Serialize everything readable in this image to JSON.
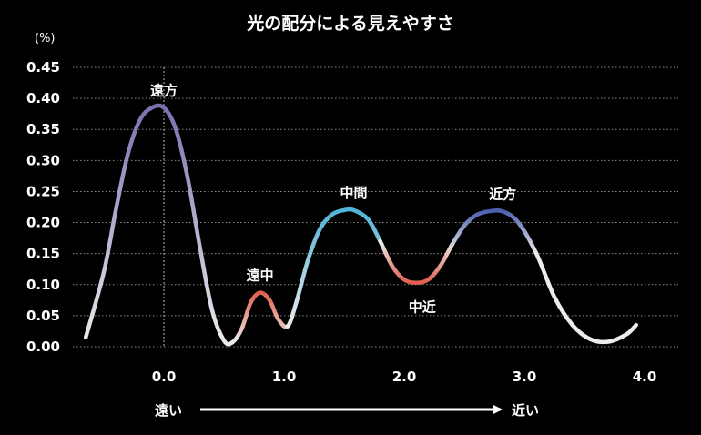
{
  "chart_data": {
    "type": "line",
    "title": "光の配分による見えやすさ",
    "ylabel": "(%)",
    "xlabel": "",
    "ylim": [
      0,
      0.45
    ],
    "xlim": [
      -0.65,
      4.0
    ],
    "grid": true,
    "y_ticks": [
      "0.00",
      "0.05",
      "0.10",
      "0.15",
      "0.20",
      "0.25",
      "0.30",
      "0.35",
      "0.40",
      "0.45"
    ],
    "y_tick_values": [
      0,
      0.05,
      0.1,
      0.15,
      0.2,
      0.25,
      0.3,
      0.35,
      0.4,
      0.45
    ],
    "x_ticks": [
      "0.0",
      "1.0",
      "2.0",
      "3.0",
      "4.0"
    ],
    "x_tick_values": [
      0,
      1,
      2,
      3,
      4
    ],
    "series": [
      {
        "x": [
          -0.65,
          -0.5,
          -0.4,
          -0.3,
          -0.2,
          -0.1,
          0.0,
          0.1,
          0.2,
          0.3,
          0.4,
          0.5,
          0.57,
          0.65,
          0.72,
          0.8,
          0.88,
          0.95,
          1.03,
          1.1,
          1.2,
          1.3,
          1.4,
          1.5,
          1.58,
          1.7,
          1.8,
          1.9,
          2.0,
          2.1,
          2.2,
          2.3,
          2.4,
          2.5,
          2.6,
          2.7,
          2.82,
          2.95,
          3.1,
          3.25,
          3.4,
          3.55,
          3.7,
          3.85,
          3.93
        ],
        "y": [
          0.015,
          0.12,
          0.22,
          0.31,
          0.365,
          0.385,
          0.385,
          0.35,
          0.27,
          0.16,
          0.06,
          0.01,
          0.007,
          0.03,
          0.07,
          0.087,
          0.075,
          0.045,
          0.033,
          0.07,
          0.14,
          0.19,
          0.213,
          0.22,
          0.22,
          0.205,
          0.17,
          0.13,
          0.108,
          0.103,
          0.108,
          0.13,
          0.165,
          0.195,
          0.212,
          0.218,
          0.218,
          0.2,
          0.15,
          0.08,
          0.035,
          0.012,
          0.008,
          0.02,
          0.035
        ]
      }
    ],
    "annotations": [
      {
        "text": "遠方",
        "x": 0.0,
        "y": 0.385,
        "position": "above"
      },
      {
        "text": "遠中",
        "x": 0.8,
        "y": 0.087,
        "position": "above"
      },
      {
        "text": "中間",
        "x": 1.58,
        "y": 0.22,
        "position": "above"
      },
      {
        "text": "中近",
        "x": 2.15,
        "y": 0.103,
        "position": "below"
      },
      {
        "text": "近方",
        "x": 2.82,
        "y": 0.218,
        "position": "above"
      }
    ],
    "reference_line_x": 0.0,
    "direction_labels": {
      "left": "遠い",
      "right": "近い"
    },
    "colors": {
      "background": "#000000",
      "grid": "#8a8a8a",
      "line_base": "#ececec",
      "far": "#7b6fb0",
      "far_mid": "#e0604c",
      "mid": "#4fb3d9",
      "near_mid": "#e0604c",
      "near": "#4a5fb0"
    }
  }
}
